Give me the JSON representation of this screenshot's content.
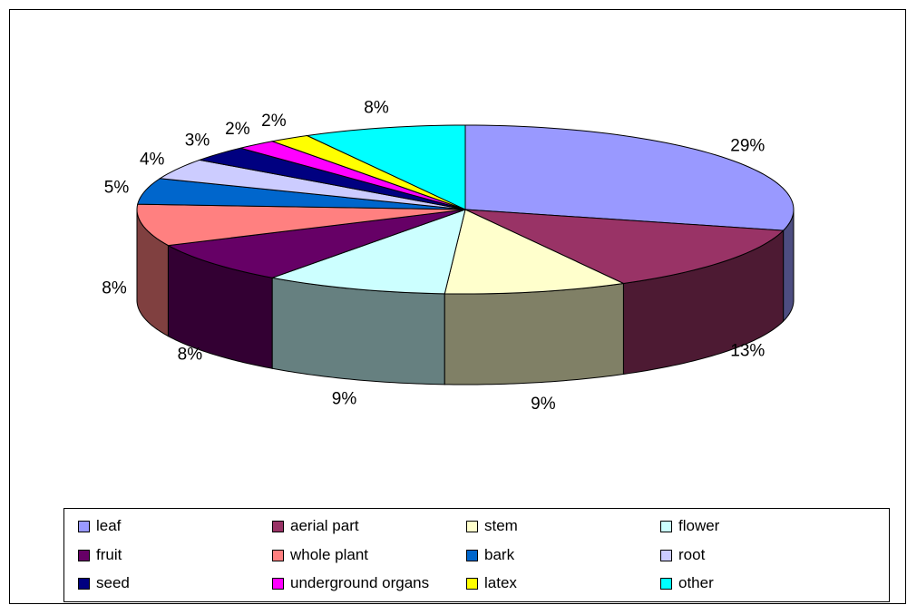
{
  "chart_data": {
    "type": "pie",
    "style": "3d-exploded-none",
    "title": "",
    "unit": "%",
    "slices": [
      {
        "label": "leaf",
        "value": 29,
        "display": "29%",
        "color": "#9999FF"
      },
      {
        "label": "aerial part",
        "value": 13,
        "display": "13%",
        "color": "#993366"
      },
      {
        "label": "stem",
        "value": 9,
        "display": "9%",
        "color": "#FFFFCC"
      },
      {
        "label": "flower",
        "value": 9,
        "display": "9%",
        "color": "#CCFFFF"
      },
      {
        "label": "fruit",
        "value": 8,
        "display": "8%",
        "color": "#660066"
      },
      {
        "label": "whole plant",
        "value": 8,
        "display": "8%",
        "color": "#FF8080"
      },
      {
        "label": "bark",
        "value": 5,
        "display": "5%",
        "color": "#0066CC"
      },
      {
        "label": "root",
        "value": 4,
        "display": "4%",
        "color": "#CCCCFF"
      },
      {
        "label": "seed",
        "value": 3,
        "display": "3%",
        "color": "#000080"
      },
      {
        "label": "underground organs",
        "value": 2,
        "display": "2%",
        "color": "#FF00FF"
      },
      {
        "label": "latex",
        "value": 2,
        "display": "2%",
        "color": "#FFFF00"
      },
      {
        "label": "other",
        "value": 8,
        "display": "8%",
        "color": "#00FFFF"
      }
    ],
    "legend": {
      "position": "bottom",
      "columns": 4
    }
  }
}
